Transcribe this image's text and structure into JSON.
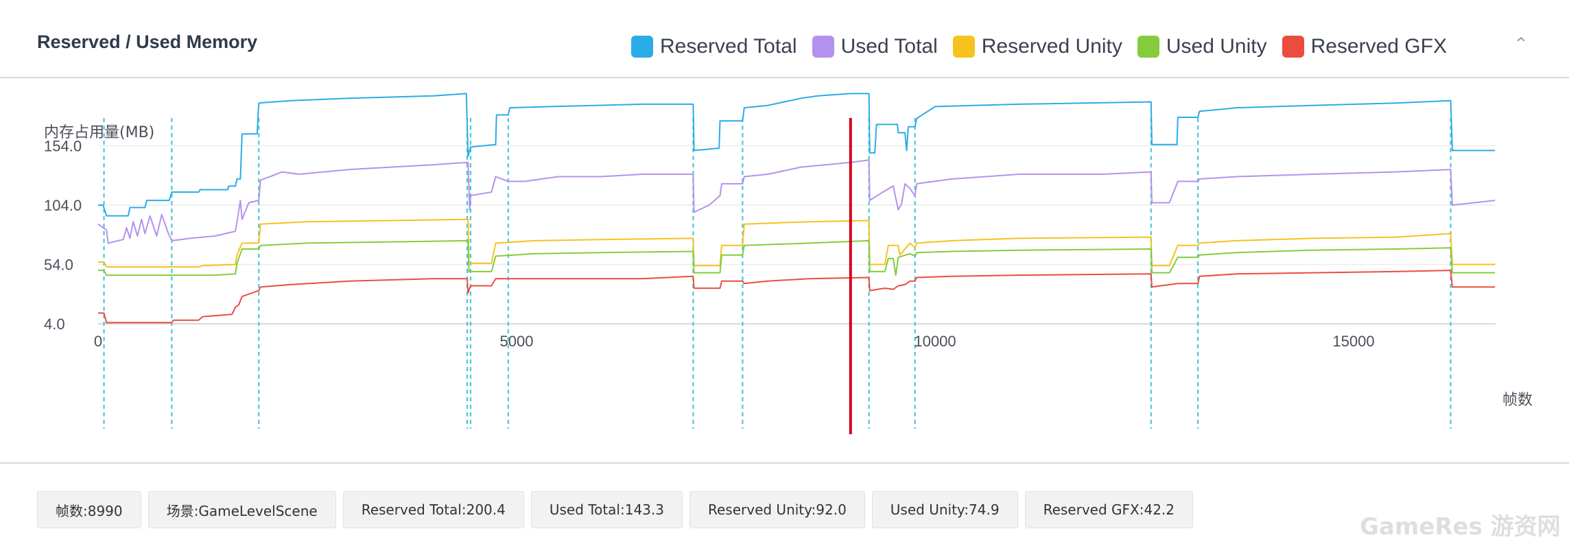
{
  "header": {
    "title": "Reserved / Used Memory",
    "collapse_icon": "chevron-up-icon",
    "legend": [
      {
        "label": "Reserved Total",
        "color": "#2aace8"
      },
      {
        "label": "Used Total",
        "color": "#b491ee"
      },
      {
        "label": "Reserved Unity",
        "color": "#f6c21e"
      },
      {
        "label": "Used Unity",
        "color": "#84cc3b"
      },
      {
        "label": "Reserved GFX",
        "color": "#ea4d3f"
      }
    ]
  },
  "chart_data": {
    "type": "line",
    "ylabel": "内存占用量(MB)",
    "xlabel": "帧数",
    "y_ticks": [
      "154.0",
      "104.0",
      "54.0",
      "4.0"
    ],
    "x_ticks": [
      "0",
      "5000",
      "10000",
      "15000"
    ],
    "xlim": [
      0,
      16900
    ],
    "ylim": [
      4,
      240
    ],
    "grid": true,
    "current_frame": 8990,
    "markers": [
      70,
      880,
      1920,
      4410,
      4450,
      4900,
      7110,
      7700,
      9210,
      9760,
      12580,
      13140,
      16160
    ],
    "series": [
      {
        "name": "Reserved Total",
        "color": "#2aace8",
        "points": [
          [
            0,
            104
          ],
          [
            60,
            104
          ],
          [
            100,
            95
          ],
          [
            360,
            95
          ],
          [
            380,
            102
          ],
          [
            560,
            102
          ],
          [
            580,
            108
          ],
          [
            850,
            108
          ],
          [
            880,
            115
          ],
          [
            1200,
            115
          ],
          [
            1220,
            117
          ],
          [
            1550,
            117
          ],
          [
            1560,
            120
          ],
          [
            1640,
            120
          ],
          [
            1660,
            126
          ],
          [
            1700,
            126
          ],
          [
            1720,
            164
          ],
          [
            1900,
            164
          ],
          [
            1920,
            190
          ],
          [
            2300,
            192
          ],
          [
            3000,
            194
          ],
          [
            4000,
            196
          ],
          [
            4400,
            198
          ],
          [
            4420,
            145
          ],
          [
            4450,
            153
          ],
          [
            4750,
            155
          ],
          [
            4760,
            180
          ],
          [
            4900,
            180
          ],
          [
            4920,
            186
          ],
          [
            5400,
            187
          ],
          [
            6500,
            189
          ],
          [
            7110,
            189
          ],
          [
            7120,
            150
          ],
          [
            7420,
            152
          ],
          [
            7430,
            175
          ],
          [
            7700,
            175
          ],
          [
            7720,
            186
          ],
          [
            8000,
            188
          ],
          [
            8200,
            191
          ],
          [
            8400,
            194
          ],
          [
            8600,
            196
          ],
          [
            8990,
            198
          ],
          [
            9210,
            198
          ],
          [
            9220,
            148
          ],
          [
            9280,
            148
          ],
          [
            9300,
            172
          ],
          [
            9550,
            172
          ],
          [
            9560,
            165
          ],
          [
            9640,
            165
          ],
          [
            9660,
            150
          ],
          [
            9680,
            170
          ],
          [
            9760,
            170
          ],
          [
            9780,
            177
          ],
          [
            10000,
            187
          ],
          [
            11000,
            189
          ],
          [
            12580,
            191
          ],
          [
            12590,
            155
          ],
          [
            12890,
            155
          ],
          [
            12900,
            178
          ],
          [
            13140,
            178
          ],
          [
            13160,
            183
          ],
          [
            13600,
            186
          ],
          [
            14500,
            188
          ],
          [
            15500,
            190
          ],
          [
            16160,
            192
          ],
          [
            16180,
            150
          ],
          [
            16690,
            150
          ]
        ]
      },
      {
        "name": "Used Total",
        "color": "#b491ee",
        "points": [
          [
            0,
            88
          ],
          [
            100,
            83
          ],
          [
            120,
            72
          ],
          [
            300,
            75
          ],
          [
            340,
            85
          ],
          [
            380,
            76
          ],
          [
            420,
            90
          ],
          [
            470,
            78
          ],
          [
            520,
            92
          ],
          [
            560,
            80
          ],
          [
            620,
            95
          ],
          [
            700,
            78
          ],
          [
            760,
            96
          ],
          [
            840,
            80
          ],
          [
            880,
            74
          ],
          [
            1100,
            76
          ],
          [
            1400,
            78
          ],
          [
            1640,
            82
          ],
          [
            1660,
            90
          ],
          [
            1700,
            108
          ],
          [
            1720,
            92
          ],
          [
            1800,
            106
          ],
          [
            1920,
            108
          ],
          [
            1940,
            125
          ],
          [
            2200,
            132
          ],
          [
            2400,
            130
          ],
          [
            3000,
            134
          ],
          [
            3500,
            136
          ],
          [
            4000,
            138
          ],
          [
            4420,
            140
          ],
          [
            4440,
            100
          ],
          [
            4450,
            112
          ],
          [
            4700,
            115
          ],
          [
            4750,
            128
          ],
          [
            4900,
            124
          ],
          [
            5100,
            124
          ],
          [
            5300,
            126
          ],
          [
            5500,
            128
          ],
          [
            6000,
            128
          ],
          [
            6500,
            130
          ],
          [
            7110,
            130
          ],
          [
            7120,
            98
          ],
          [
            7300,
            104
          ],
          [
            7430,
            112
          ],
          [
            7450,
            122
          ],
          [
            7700,
            122
          ],
          [
            7720,
            128
          ],
          [
            8000,
            130
          ],
          [
            8400,
            136
          ],
          [
            8990,
            140
          ],
          [
            9210,
            142
          ],
          [
            9220,
            108
          ],
          [
            9400,
            116
          ],
          [
            9500,
            120
          ],
          [
            9560,
            100
          ],
          [
            9600,
            105
          ],
          [
            9640,
            122
          ],
          [
            9700,
            118
          ],
          [
            9760,
            112
          ],
          [
            9780,
            122
          ],
          [
            10200,
            126
          ],
          [
            10600,
            128
          ],
          [
            11000,
            130
          ],
          [
            11500,
            130
          ],
          [
            12000,
            130
          ],
          [
            12580,
            132
          ],
          [
            12590,
            106
          ],
          [
            12800,
            106
          ],
          [
            12900,
            124
          ],
          [
            13140,
            124
          ],
          [
            13160,
            126
          ],
          [
            13600,
            128
          ],
          [
            14500,
            130
          ],
          [
            15500,
            132
          ],
          [
            16160,
            134
          ],
          [
            16180,
            104
          ],
          [
            16690,
            108
          ]
        ]
      },
      {
        "name": "Reserved Unity",
        "color": "#f6c21e",
        "points": [
          [
            0,
            56
          ],
          [
            70,
            56
          ],
          [
            100,
            52
          ],
          [
            1200,
            52
          ],
          [
            1250,
            53
          ],
          [
            1640,
            54
          ],
          [
            1660,
            62
          ],
          [
            1720,
            72
          ],
          [
            1920,
            72
          ],
          [
            1940,
            88
          ],
          [
            2500,
            90
          ],
          [
            3500,
            91
          ],
          [
            4420,
            92
          ],
          [
            4430,
            55
          ],
          [
            4700,
            55
          ],
          [
            4750,
            72
          ],
          [
            5200,
            74
          ],
          [
            6000,
            75
          ],
          [
            7110,
            76
          ],
          [
            7120,
            53
          ],
          [
            7430,
            53
          ],
          [
            7450,
            70
          ],
          [
            7700,
            70
          ],
          [
            7720,
            88
          ],
          [
            8500,
            90
          ],
          [
            9210,
            91
          ],
          [
            9220,
            54
          ],
          [
            9400,
            54
          ],
          [
            9440,
            70
          ],
          [
            9560,
            70
          ],
          [
            9580,
            62
          ],
          [
            9700,
            72
          ],
          [
            9760,
            68
          ],
          [
            9780,
            72
          ],
          [
            10200,
            74
          ],
          [
            11000,
            76
          ],
          [
            12580,
            77
          ],
          [
            12590,
            53
          ],
          [
            12800,
            53
          ],
          [
            12900,
            70
          ],
          [
            13140,
            70
          ],
          [
            13160,
            72
          ],
          [
            13600,
            74
          ],
          [
            14500,
            76
          ],
          [
            15500,
            77
          ],
          [
            16160,
            80
          ],
          [
            16180,
            54
          ],
          [
            16690,
            54
          ]
        ]
      },
      {
        "name": "Used Unity",
        "color": "#84cc3b",
        "points": [
          [
            0,
            49
          ],
          [
            70,
            49
          ],
          [
            100,
            45
          ],
          [
            1400,
            45
          ],
          [
            1640,
            46
          ],
          [
            1660,
            55
          ],
          [
            1720,
            67
          ],
          [
            1920,
            67
          ],
          [
            1940,
            70
          ],
          [
            2500,
            72
          ],
          [
            3500,
            73
          ],
          [
            4420,
            74
          ],
          [
            4430,
            48
          ],
          [
            4700,
            48
          ],
          [
            4750,
            61
          ],
          [
            5200,
            63
          ],
          [
            6000,
            64
          ],
          [
            7110,
            65
          ],
          [
            7120,
            47
          ],
          [
            7430,
            47
          ],
          [
            7450,
            62
          ],
          [
            7700,
            62
          ],
          [
            7720,
            70
          ],
          [
            8500,
            72
          ],
          [
            9210,
            74
          ],
          [
            9220,
            48
          ],
          [
            9400,
            48
          ],
          [
            9440,
            59
          ],
          [
            9500,
            59
          ],
          [
            9530,
            45
          ],
          [
            9560,
            60
          ],
          [
            9700,
            63
          ],
          [
            9760,
            61
          ],
          [
            9780,
            64
          ],
          [
            10200,
            65
          ],
          [
            11000,
            66
          ],
          [
            12580,
            67
          ],
          [
            12590,
            47
          ],
          [
            12800,
            47
          ],
          [
            12900,
            60
          ],
          [
            13140,
            60
          ],
          [
            13160,
            62
          ],
          [
            13600,
            64
          ],
          [
            14500,
            66
          ],
          [
            15500,
            67
          ],
          [
            16160,
            68
          ],
          [
            16180,
            47
          ],
          [
            16690,
            47
          ]
        ]
      },
      {
        "name": "Reserved GFX",
        "color": "#ea4d3f",
        "points": [
          [
            0,
            13
          ],
          [
            70,
            13
          ],
          [
            100,
            5
          ],
          [
            880,
            5
          ],
          [
            900,
            7
          ],
          [
            1200,
            7
          ],
          [
            1250,
            10
          ],
          [
            1600,
            12
          ],
          [
            1640,
            18
          ],
          [
            1680,
            20
          ],
          [
            1720,
            27
          ],
          [
            1920,
            32
          ],
          [
            1940,
            35
          ],
          [
            2300,
            37
          ],
          [
            3000,
            40
          ],
          [
            4000,
            42
          ],
          [
            4410,
            42
          ],
          [
            4420,
            30
          ],
          [
            4450,
            36
          ],
          [
            4700,
            36
          ],
          [
            4750,
            42
          ],
          [
            5000,
            42
          ],
          [
            5500,
            42
          ],
          [
            6500,
            42
          ],
          [
            7110,
            44
          ],
          [
            7120,
            34
          ],
          [
            7430,
            34
          ],
          [
            7450,
            40
          ],
          [
            7700,
            40
          ],
          [
            7720,
            38
          ],
          [
            8000,
            40
          ],
          [
            8500,
            42
          ],
          [
            9210,
            43
          ],
          [
            9220,
            32
          ],
          [
            9400,
            34
          ],
          [
            9500,
            33
          ],
          [
            9560,
            36
          ],
          [
            9640,
            37
          ],
          [
            9700,
            40
          ],
          [
            9760,
            40
          ],
          [
            9780,
            43
          ],
          [
            10200,
            44
          ],
          [
            11000,
            45
          ],
          [
            12580,
            46
          ],
          [
            12590,
            35
          ],
          [
            12800,
            37
          ],
          [
            12900,
            38
          ],
          [
            13140,
            38
          ],
          [
            13160,
            44
          ],
          [
            13600,
            46
          ],
          [
            14500,
            47
          ],
          [
            15500,
            48
          ],
          [
            16160,
            49
          ],
          [
            16180,
            35
          ],
          [
            16690,
            35
          ]
        ]
      }
    ]
  },
  "footer": {
    "tags": [
      "帧数:8990",
      "场景:GameLevelScene",
      "Reserved Total:200.4",
      "Used Total:143.3",
      "Reserved Unity:92.0",
      "Used Unity:74.9",
      "Reserved GFX:42.2"
    ]
  },
  "watermark": "GameRes游资网"
}
